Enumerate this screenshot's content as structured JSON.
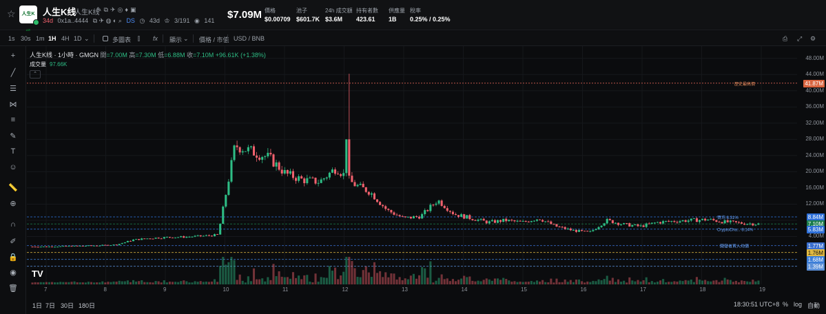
{
  "header": {
    "logo_text": "人生K线",
    "token_name": "人生K线",
    "token_sub": "人生K线",
    "age": "34d",
    "address": "0x1a..4444",
    "ds_label": "DS",
    "days": "43d",
    "holders_ratio": "3/191",
    "views": "141",
    "price_big": "$7.09M",
    "stats": [
      {
        "label": "價格",
        "value": "$0.00709"
      },
      {
        "label": "池子",
        "value": "$601.7K"
      },
      {
        "label": "24h 成交額",
        "value": "$3.6M"
      },
      {
        "label": "持有者數",
        "value": "423.61"
      },
      {
        "label": "供應量",
        "value": "1B"
      },
      {
        "label": "稅率",
        "value": "0.25% / 0.25%"
      }
    ]
  },
  "toolbar": {
    "intervals": [
      "1s",
      "30s",
      "1m",
      "1H",
      "4H",
      "1D"
    ],
    "active_interval": "1H",
    "multi_chart": "多圖表",
    "indicators": "fx",
    "display": "顯示",
    "price_mcap": "價格 / 市值",
    "quote": "USD / BNB"
  },
  "legend": {
    "title": "人生K线 · 1小時 · GMGN",
    "open_label": "開",
    "open": "=7.00M",
    "high_label": "高",
    "high": "=7.30M",
    "low_label": "低",
    "low": "=6.88M",
    "close_label": "收",
    "close": "=7.10M",
    "change": "+96.61K (+1.38%)",
    "volume_label": "成交量",
    "volume": "97.66K"
  },
  "chart_data": {
    "type": "candlestick",
    "x_ticks": [
      "7",
      "8",
      "9",
      "10",
      "11",
      "12",
      "13",
      "14",
      "15",
      "16",
      "17",
      "18",
      "19"
    ],
    "y_ticks": [
      "48.00M",
      "44.00M",
      "40.00M",
      "36.00M",
      "32.00M",
      "28.00M",
      "24.00M",
      "20.00M",
      "16.00M",
      "12.00M",
      "8.00M",
      "4.00M"
    ],
    "y_range": [
      0,
      50
    ],
    "ath_label": "歷史最高價",
    "ath": "41.87M",
    "markers": [
      {
        "label": "買均 8.31%",
        "value": "8.84M",
        "color": "#2d6fd8"
      },
      {
        "label": "",
        "value": "7.10M",
        "color": "#1c7d4c"
      },
      {
        "label": "CryptoCha... 8.14%",
        "value": "5.83M",
        "color": "#2d6fd8"
      },
      {
        "label": "開發者買入均價",
        "value": "1.77M",
        "color": "#3a6fd0"
      },
      {
        "label": "",
        "value": "1.76M",
        "color": "#e1b941"
      },
      {
        "label": "",
        "value": "1.68M",
        "color": "#3a7dd8"
      },
      {
        "label": "",
        "value": "1.39M",
        "color": "#5a8fd8"
      }
    ],
    "close_series_M": [
      1.5,
      1.5,
      1.6,
      1.7,
      1.8,
      2.0,
      3.2,
      3.6,
      3.8,
      3.9,
      4.1,
      4.4,
      26.5,
      25.0,
      23.5,
      19.5,
      18.0,
      17.5,
      21.0,
      17.0,
      15.0,
      10.5,
      8.5,
      9.0,
      13.0,
      9.5,
      8.5,
      7.5,
      8.0,
      7.5,
      8.5,
      6.5,
      5.5,
      5.0,
      8.0,
      7.0,
      6.5,
      7.5,
      7.8,
      8.0,
      8.2,
      7.6,
      7.3,
      7.1
    ]
  },
  "bottom": {
    "ranges": [
      "1日",
      "7日",
      "30日",
      "180日"
    ],
    "time": "18:30:51 UTC+8",
    "percent": "%",
    "log": "log",
    "auto": "自動"
  }
}
